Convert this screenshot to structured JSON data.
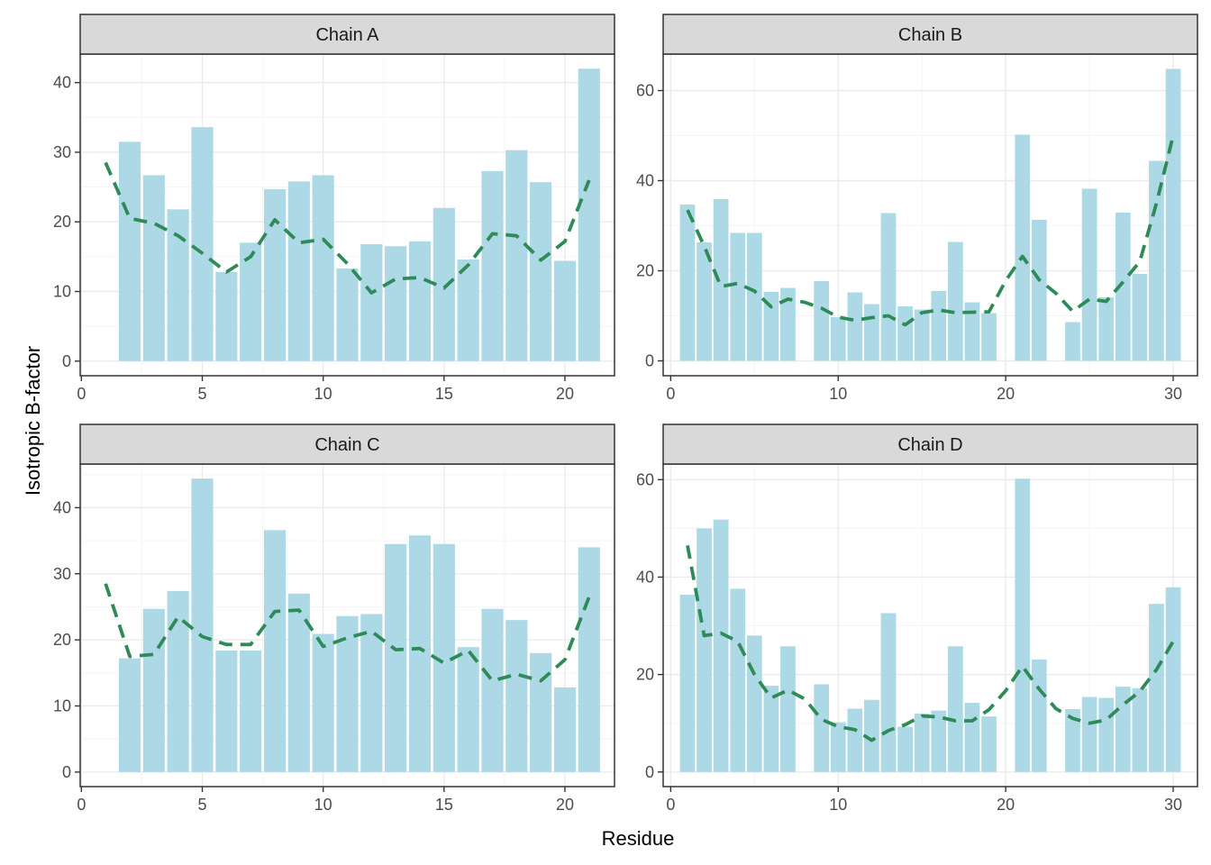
{
  "figure": {
    "xlabel": "Residue",
    "ylabel": "Isotropic B-factor"
  },
  "colors": {
    "bar": "#ADD8E6",
    "smooth": "#2E8B57",
    "strip_fill": "#D9D9D9",
    "grid_major": "#EBEBEB",
    "grid_minor": "#F5F5F5",
    "panel_border": "#333333"
  },
  "chart_data": [
    {
      "type": "bar",
      "title": "Chain A",
      "x": [
        2,
        3,
        4,
        5,
        6,
        7,
        8,
        9,
        10,
        11,
        12,
        13,
        14,
        15,
        16,
        17,
        18,
        19,
        20,
        21
      ],
      "values": [
        31.5,
        26.7,
        21.8,
        33.6,
        12.8,
        17.0,
        24.7,
        25.8,
        26.7,
        13.3,
        16.8,
        16.5,
        17.2,
        22.0,
        14.6,
        27.3,
        30.3,
        25.7,
        14.4,
        42.0
      ],
      "smooth": {
        "x": [
          1,
          2,
          3,
          4,
          5,
          6,
          7,
          8,
          9,
          10,
          11,
          12,
          13,
          14,
          15,
          16,
          17,
          18,
          19,
          20,
          21
        ],
        "y": [
          28.5,
          20.5,
          19.8,
          18.0,
          15.5,
          12.8,
          15.0,
          20.3,
          17.0,
          17.5,
          14.0,
          9.8,
          11.8,
          12.0,
          10.5,
          13.8,
          18.3,
          18.0,
          14.5,
          17.2,
          26.0
        ]
      },
      "xlim": [
        -0.05,
        22.05
      ],
      "ylim": [
        -2.1,
        44.1
      ],
      "xticks": [
        0,
        5,
        10,
        15,
        20
      ],
      "yticks": [
        0,
        10,
        20,
        30,
        40
      ]
    },
    {
      "type": "bar",
      "title": "Chain B",
      "x": [
        1,
        2,
        3,
        4,
        5,
        6,
        7,
        9,
        10,
        11,
        12,
        13,
        14,
        15,
        16,
        17,
        18,
        19,
        21,
        22,
        24,
        25,
        26,
        27,
        28,
        29,
        30
      ],
      "values": [
        34.7,
        26.3,
        35.9,
        28.4,
        28.4,
        15.3,
        16.2,
        17.7,
        9.7,
        15.2,
        12.6,
        32.8,
        12.1,
        11.4,
        15.5,
        26.4,
        13.0,
        10.6,
        50.2,
        31.3,
        8.6,
        38.2,
        14.1,
        32.9,
        19.3,
        44.4,
        64.8
      ],
      "smooth": {
        "x": [
          1,
          2,
          3,
          4,
          5,
          6,
          7,
          8,
          9,
          10,
          11,
          12,
          13,
          14,
          15,
          16,
          17,
          18,
          19,
          20,
          21,
          22,
          23,
          24,
          25,
          26,
          27,
          28,
          29,
          30
        ],
        "y": [
          33.5,
          25.5,
          16.5,
          17.2,
          15.5,
          12.0,
          13.7,
          13.0,
          11.7,
          9.7,
          9.0,
          9.6,
          10.0,
          8.0,
          10.7,
          11.3,
          10.7,
          10.8,
          10.9,
          17.8,
          23.2,
          18.0,
          15.0,
          11.0,
          13.7,
          13.2,
          17.5,
          22.0,
          35.0,
          50.0
        ]
      },
      "xlim": [
        -0.45,
        31.45
      ],
      "ylim": [
        -3.3,
        68.1
      ],
      "xticks": [
        0,
        10,
        20,
        30
      ],
      "yticks": [
        0,
        20,
        40,
        60
      ]
    },
    {
      "type": "bar",
      "title": "Chain C",
      "x": [
        2,
        3,
        4,
        5,
        6,
        7,
        8,
        9,
        10,
        11,
        12,
        13,
        14,
        15,
        16,
        17,
        18,
        19,
        20,
        21
      ],
      "values": [
        17.2,
        24.7,
        27.4,
        44.4,
        18.4,
        18.4,
        36.6,
        27.0,
        20.9,
        23.6,
        23.9,
        34.5,
        35.8,
        34.5,
        18.9,
        24.7,
        23.0,
        18.0,
        12.8,
        34.0
      ],
      "smooth": {
        "x": [
          1,
          2,
          3,
          4,
          5,
          6,
          7,
          8,
          9,
          10,
          11,
          12,
          13,
          14,
          15,
          16,
          17,
          18,
          19,
          20,
          21
        ],
        "y": [
          28.5,
          17.5,
          17.8,
          23.5,
          20.5,
          19.3,
          19.3,
          24.3,
          24.5,
          19.0,
          20.3,
          21.3,
          18.5,
          18.7,
          16.5,
          18.4,
          13.8,
          14.8,
          13.8,
          17.0,
          26.5
        ]
      },
      "xlim": [
        -0.05,
        22.05
      ],
      "ylim": [
        -2.2,
        46.6
      ],
      "xticks": [
        0,
        5,
        10,
        15,
        20
      ],
      "yticks": [
        0,
        10,
        20,
        30,
        40
      ]
    },
    {
      "type": "bar",
      "title": "Chain D",
      "x": [
        1,
        2,
        3,
        4,
        5,
        6,
        7,
        9,
        10,
        11,
        12,
        13,
        14,
        15,
        16,
        17,
        18,
        19,
        21,
        22,
        24,
        25,
        26,
        27,
        28,
        29,
        30
      ],
      "values": [
        36.4,
        50.0,
        51.8,
        37.6,
        28.0,
        17.7,
        25.8,
        18.0,
        10.2,
        13.0,
        14.8,
        32.6,
        9.3,
        12.0,
        12.6,
        25.8,
        14.2,
        11.4,
        60.2,
        23.1,
        12.9,
        15.4,
        15.2,
        17.5,
        17.2,
        34.5,
        37.9
      ],
      "smooth": {
        "x": [
          1,
          2,
          3,
          4,
          5,
          6,
          7,
          8,
          9,
          10,
          11,
          12,
          13,
          14,
          15,
          16,
          17,
          18,
          19,
          20,
          21,
          22,
          23,
          24,
          25,
          26,
          27,
          28,
          29,
          30
        ],
        "y": [
          46.5,
          28.0,
          28.5,
          26.8,
          20.0,
          15.2,
          16.8,
          15.0,
          10.8,
          9.3,
          8.7,
          6.5,
          8.5,
          9.7,
          11.5,
          11.3,
          10.5,
          10.5,
          12.8,
          16.7,
          21.7,
          17.0,
          13.0,
          11.0,
          10.0,
          10.7,
          13.8,
          16.5,
          21.0,
          26.8
        ]
      },
      "xlim": [
        -0.45,
        31.45
      ],
      "ylim": [
        -3.0,
        63.2
      ],
      "xticks": [
        0,
        10,
        20,
        30
      ],
      "yticks": [
        0,
        20,
        40,
        60
      ]
    }
  ]
}
